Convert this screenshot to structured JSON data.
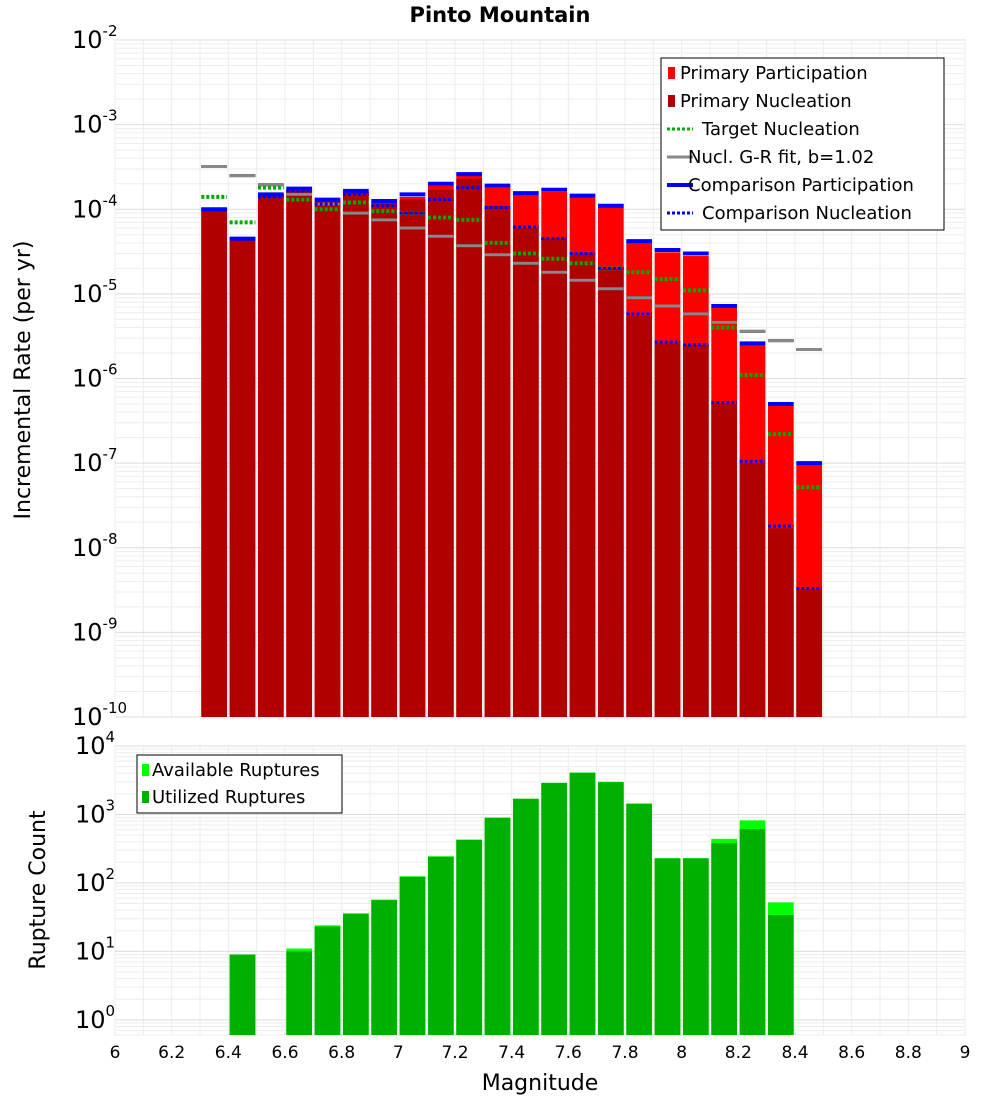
{
  "chart_data": [
    {
      "type": "bar",
      "title": "Pinto Mountain",
      "ylabel": "Incremental Rate (per yr)",
      "xlabel": "",
      "y_scale": "log",
      "ylim": [
        1e-10,
        0.01
      ],
      "xlim": [
        6,
        9
      ],
      "grid": true,
      "legend_placement": "top-right",
      "y_ticks": [
        {
          "base": "10",
          "exp": "-10",
          "value": 1e-10
        },
        {
          "base": "10",
          "exp": "-9",
          "value": 1e-09
        },
        {
          "base": "10",
          "exp": "-8",
          "value": 1e-08
        },
        {
          "base": "10",
          "exp": "-7",
          "value": 1e-07
        },
        {
          "base": "10",
          "exp": "-6",
          "value": 1e-06
        },
        {
          "base": "10",
          "exp": "-5",
          "value": 1e-05
        },
        {
          "base": "10",
          "exp": "-4",
          "value": 0.0001
        },
        {
          "base": "10",
          "exp": "-3",
          "value": 0.001
        },
        {
          "base": "10",
          "exp": "-2",
          "value": 0.01
        }
      ],
      "x": [
        6.35,
        6.45,
        6.55,
        6.65,
        6.75,
        6.85,
        6.95,
        7.05,
        7.15,
        7.25,
        7.35,
        7.45,
        7.55,
        7.65,
        7.75,
        7.85,
        7.95,
        8.05,
        8.15,
        8.25,
        8.35,
        8.45
      ],
      "series": [
        {
          "name": "Primary Participation",
          "style": "bar",
          "color": "#ff0000",
          "values": [
            0.0001,
            4.5e-05,
            0.00015,
            0.00017,
            0.000125,
            0.00016,
            0.00012,
            0.00014,
            0.00019,
            0.00025,
            0.00018,
            0.00015,
            0.00016,
            0.00014,
            0.000105,
            4e-05,
            3.1e-05,
            2.8e-05,
            7e-06,
            2.5e-06,
            4.8e-07,
            9.5e-08
          ]
        },
        {
          "name": "Primary Nucleation",
          "style": "bar",
          "color": "#b00000",
          "values": [
            0.0001,
            4.5e-05,
            0.00015,
            0.00017,
            0.000125,
            0.00016,
            0.00012,
            0.00013,
            0.00017,
            0.00023,
            0.00011,
            6e-05,
            4.5e-05,
            3e-05,
            2e-05,
            5.5e-06,
            2.6e-06,
            2.5e-06,
            5e-07,
            1e-07,
            1.7e-08,
            3.2e-09
          ]
        },
        {
          "name": "Target Nucleation",
          "style": "dotted",
          "color": "#00aa00",
          "values": [
            0.00014,
            7e-05,
            0.00018,
            0.00013,
            0.0001,
            0.00012,
            9.5e-05,
            9e-05,
            8e-05,
            7.5e-05,
            4e-05,
            3e-05,
            2.6e-05,
            2.3e-05,
            2e-05,
            1.8e-05,
            1.5e-05,
            1.1e-05,
            4e-06,
            1.1e-06,
            2.2e-07,
            5.2e-08
          ]
        },
        {
          "name": "Nucl. G-R fit, b=1.02",
          "style": "solid",
          "color": "#888888",
          "values": [
            0.00032,
            0.00025,
            0.000195,
            0.00015,
            0.000115,
            9e-05,
            7.5e-05,
            6e-05,
            4.8e-05,
            3.7e-05,
            2.9e-05,
            2.3e-05,
            1.8e-05,
            1.45e-05,
            1.15e-05,
            9e-06,
            7.2e-06,
            5.8e-06,
            4.6e-06,
            3.6e-06,
            2.8e-06,
            2.2e-06
          ]
        },
        {
          "name": "Comparison Participation",
          "style": "solid-thick",
          "color": "#0000ff",
          "values": [
            0.0001,
            4.5e-05,
            0.00015,
            0.000175,
            0.00013,
            0.000165,
            0.000125,
            0.00015,
            0.0002,
            0.00026,
            0.00019,
            0.000155,
            0.00017,
            0.000145,
            0.00011,
            4.2e-05,
            3.3e-05,
            3e-05,
            7.2e-06,
            2.6e-06,
            5e-07,
            1e-07
          ]
        },
        {
          "name": "Comparison Nucleation",
          "style": "dotted",
          "color": "#0000ff",
          "values": [
            0.0001,
            4.5e-05,
            0.00014,
            0.000165,
            0.000115,
            0.00015,
            0.00011,
            9e-05,
            0.00013,
            0.00018,
            0.000105,
            6.2e-05,
            4.5e-05,
            3e-05,
            2e-05,
            5.8e-06,
            2.7e-06,
            2.5e-06,
            5.2e-07,
            1.05e-07,
            1.8e-08,
            3.3e-09
          ]
        }
      ]
    },
    {
      "type": "bar",
      "title": "",
      "ylabel": "Rupture Count",
      "xlabel": "Magnitude",
      "y_scale": "log",
      "ylim": [
        0.6,
        10000
      ],
      "xlim": [
        6,
        9
      ],
      "grid": true,
      "legend_placement": "top-left",
      "y_ticks": [
        {
          "base": "10",
          "exp": "0",
          "value": 1
        },
        {
          "base": "10",
          "exp": "1",
          "value": 10
        },
        {
          "base": "10",
          "exp": "2",
          "value": 100
        },
        {
          "base": "10",
          "exp": "3",
          "value": 1000
        },
        {
          "base": "10",
          "exp": "4",
          "value": 10000
        }
      ],
      "x_ticks": [
        "6",
        "6.2",
        "6.4",
        "6.6",
        "6.8",
        "7",
        "7.2",
        "7.4",
        "7.6",
        "7.8",
        "8",
        "8.2",
        "8.4",
        "8.6",
        "8.8",
        "9"
      ],
      "x": [
        6.45,
        6.65,
        6.75,
        6.85,
        6.95,
        7.05,
        7.15,
        7.25,
        7.35,
        7.45,
        7.55,
        7.65,
        7.75,
        7.85,
        7.95,
        8.05,
        8.15,
        8.25,
        8.35
      ],
      "series": [
        {
          "name": "Available Ruptures",
          "style": "bar",
          "color": "#00ff00",
          "values": [
            9,
            11,
            24,
            36,
            57,
            125,
            245,
            430,
            900,
            1700,
            2900,
            4100,
            3000,
            1450,
            230,
            230,
            440,
            820,
            52
          ]
        },
        {
          "name": "Utilized Ruptures",
          "style": "bar",
          "color": "#00b000",
          "values": [
            9,
            10,
            23,
            35,
            56,
            122,
            240,
            425,
            890,
            1690,
            2880,
            4050,
            2950,
            1420,
            228,
            228,
            380,
            610,
            34
          ]
        }
      ]
    }
  ]
}
